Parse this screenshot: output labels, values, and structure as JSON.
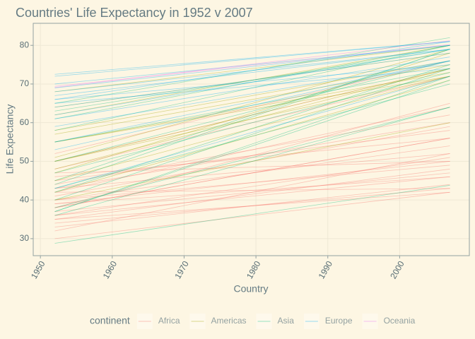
{
  "chart_data": {
    "type": "line",
    "title": "Countries' Life Expectancy in 1952 v 2007",
    "x_label": "Country",
    "y_label": "Life Expectancy",
    "legend_title": "continent",
    "x": [
      1952,
      2007
    ],
    "xlim": [
      1949,
      2009.7
    ],
    "ylim": [
      25.6,
      85.7
    ],
    "xticks": [
      1950,
      1960,
      1970,
      1980,
      1990,
      2000
    ],
    "yticks": [
      30,
      40,
      50,
      60,
      70,
      80
    ],
    "grid": true,
    "legend_position": "bottom",
    "groups": [
      {
        "name": "Africa",
        "color": "#F8766D",
        "lines": [
          [
            43,
            52
          ],
          [
            30,
            42
          ],
          [
            38,
            56
          ],
          [
            47,
            50
          ],
          [
            32,
            52
          ],
          [
            39,
            50
          ],
          [
            40,
            54
          ],
          [
            36,
            46
          ],
          [
            35,
            48
          ],
          [
            41,
            59
          ],
          [
            42,
            43
          ],
          [
            37,
            47
          ],
          [
            44,
            62
          ],
          [
            38,
            56
          ],
          [
            33,
            44
          ],
          [
            45,
            58
          ],
          [
            40,
            49
          ],
          [
            36,
            51
          ],
          [
            48,
            72
          ],
          [
            42,
            64
          ],
          [
            50,
            74
          ],
          [
            52,
            76
          ],
          [
            35,
            42
          ],
          [
            39,
            46
          ],
          [
            34,
            43
          ],
          [
            43,
            60
          ],
          [
            38,
            65
          ],
          [
            46,
            56
          ]
        ]
      },
      {
        "name": "Americas",
        "color": "#A3A500",
        "lines": [
          [
            62,
            80
          ],
          [
            68,
            80
          ],
          [
            55,
            73
          ],
          [
            51,
            79
          ],
          [
            50,
            72
          ],
          [
            47,
            78
          ],
          [
            45,
            72
          ],
          [
            40,
            60
          ],
          [
            58,
            76
          ],
          [
            48,
            74
          ],
          [
            42,
            71
          ],
          [
            57,
            75
          ],
          [
            50,
            74
          ],
          [
            64,
            78
          ],
          [
            55,
            72
          ]
        ]
      },
      {
        "name": "Asia",
        "color": "#00BF7D",
        "lines": [
          [
            28.8,
            43.8
          ],
          [
            37,
            72
          ],
          [
            44,
            79
          ],
          [
            47,
            73
          ],
          [
            38,
            64
          ],
          [
            65,
            82
          ],
          [
            58,
            80
          ],
          [
            63,
            79
          ],
          [
            37,
            71
          ],
          [
            42,
            75
          ],
          [
            43,
            70
          ],
          [
            50,
            76
          ],
          [
            36,
            64
          ],
          [
            45,
            79
          ],
          [
            40,
            74
          ],
          [
            55,
            74
          ],
          [
            61,
            80
          ]
        ]
      },
      {
        "name": "Europe",
        "color": "#00B0F6",
        "lines": [
          [
            55,
            76
          ],
          [
            66,
            81
          ],
          [
            68,
            79
          ],
          [
            72,
            81
          ],
          [
            70,
            80
          ],
          [
            61,
            77
          ],
          [
            64,
            78
          ],
          [
            59,
            76
          ],
          [
            69,
            80
          ],
          [
            67,
            79
          ],
          [
            72.5,
            81
          ],
          [
            66,
            75
          ],
          [
            65,
            74
          ],
          [
            62,
            79
          ],
          [
            43,
            72
          ],
          [
            53,
            76
          ]
        ]
      },
      {
        "name": "Oceania",
        "color": "#E76BF3",
        "lines": [
          [
            69.1,
            81.2
          ],
          [
            69.4,
            80.2
          ]
        ]
      }
    ]
  }
}
